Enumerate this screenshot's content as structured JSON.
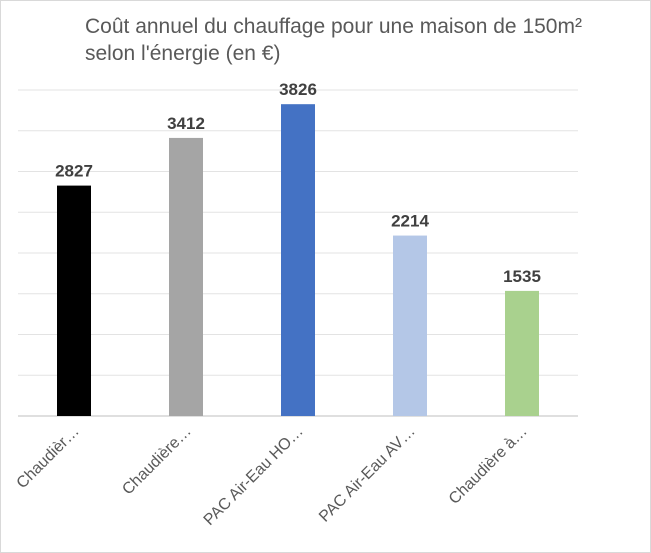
{
  "chart_data": {
    "type": "bar",
    "title": "Coût annuel du chauffage pour une maison de 150m²\nselon l'énergie (en €)",
    "categories": [
      "Chaudièr…",
      "Chaudière…",
      "PAC Air-Eau HO…",
      "PAC Air-Eau AV…",
      "Chaudière à…"
    ],
    "values": [
      2827,
      3412,
      3826,
      2214,
      1535
    ],
    "colors": [
      "#000000",
      "#a5a5a5",
      "#4472c4",
      "#b4c7e7",
      "#a9d18e"
    ],
    "ylim": [
      0,
      4000
    ],
    "grid": true,
    "legend": "none"
  }
}
